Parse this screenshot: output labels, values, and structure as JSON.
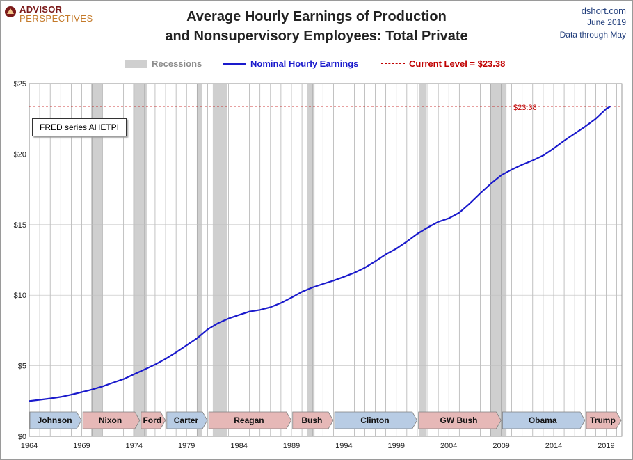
{
  "header": {
    "logo_top": "ADVISOR",
    "logo_bottom": "PERSPECTIVES",
    "title_line1": "Average Hourly Earnings of Production",
    "title_line2": "and Nonsupervisory Employees: Total Private",
    "source": "dshort.com",
    "date": "June 2019",
    "data_through": "Data through May"
  },
  "legend": {
    "recessions": "Recessions",
    "nominal": "Nominal Hourly Earnings",
    "current": "Current Level = $23.38"
  },
  "annotation": {
    "fred": "FRED series AHETPI",
    "current_value_label": "$23.38"
  },
  "colors": {
    "line": "#1a1acc",
    "recession": "#cfcfcf",
    "current": "#c00000",
    "dem": "#b8cce4",
    "rep": "#e6b8b7"
  },
  "chart_data": {
    "type": "line",
    "title": "Average Hourly Earnings of Production and Nonsupervisory Employees: Total Private",
    "xlabel": "",
    "ylabel": "",
    "xlim": [
      1964,
      2020.5
    ],
    "ylim": [
      0,
      25
    ],
    "x_ticks": [
      1964,
      1969,
      1974,
      1979,
      1984,
      1989,
      1994,
      1999,
      2004,
      2009,
      2014,
      2019
    ],
    "y_ticks": [
      0,
      5,
      10,
      15,
      20,
      25
    ],
    "y_tick_labels": [
      "$0",
      "$5",
      "$10",
      "$15",
      "$20",
      "$25"
    ],
    "grid": true,
    "current_level": 23.38,
    "series": [
      {
        "name": "Nominal Hourly Earnings",
        "x": [
          1964.0,
          1965.0,
          1966.0,
          1967.0,
          1968.0,
          1969.0,
          1970.0,
          1971.0,
          1972.0,
          1973.0,
          1974.0,
          1975.0,
          1976.0,
          1977.0,
          1978.0,
          1979.0,
          1980.0,
          1981.0,
          1982.0,
          1983.0,
          1984.0,
          1985.0,
          1986.0,
          1987.0,
          1988.0,
          1989.0,
          1990.0,
          1991.0,
          1992.0,
          1993.0,
          1994.0,
          1995.0,
          1996.0,
          1997.0,
          1998.0,
          1999.0,
          2000.0,
          2001.0,
          2002.0,
          2003.0,
          2004.0,
          2005.0,
          2006.0,
          2007.0,
          2008.0,
          2009.0,
          2010.0,
          2011.0,
          2012.0,
          2013.0,
          2014.0,
          2015.0,
          2016.0,
          2017.0,
          2018.0,
          2019.0,
          2019.4
        ],
        "y": [
          2.5,
          2.59,
          2.68,
          2.79,
          2.95,
          3.13,
          3.32,
          3.54,
          3.8,
          4.06,
          4.4,
          4.74,
          5.09,
          5.49,
          5.95,
          6.45,
          6.95,
          7.58,
          8.02,
          8.35,
          8.6,
          8.84,
          8.96,
          9.15,
          9.45,
          9.83,
          10.24,
          10.55,
          10.8,
          11.03,
          11.3,
          11.59,
          11.95,
          12.4,
          12.9,
          13.3,
          13.8,
          14.35,
          14.8,
          15.2,
          15.45,
          15.85,
          16.5,
          17.22,
          17.9,
          18.5,
          18.9,
          19.25,
          19.55,
          19.9,
          20.4,
          20.95,
          21.45,
          21.95,
          22.5,
          23.2,
          23.38
        ]
      }
    ],
    "recessions": [
      [
        1969.9,
        1970.9
      ],
      [
        1973.9,
        1975.2
      ],
      [
        1980.0,
        1980.5
      ],
      [
        1981.5,
        1982.9
      ],
      [
        1990.5,
        1991.2
      ],
      [
        2001.2,
        2001.9
      ],
      [
        2007.9,
        2009.5
      ]
    ],
    "presidents": [
      {
        "name": "Johnson",
        "start": 1964.0,
        "end": 1969.05,
        "party": "D"
      },
      {
        "name": "Nixon",
        "start": 1969.05,
        "end": 1974.6,
        "party": "R"
      },
      {
        "name": "Ford",
        "start": 1974.6,
        "end": 1977.05,
        "party": "R"
      },
      {
        "name": "Carter",
        "start": 1977.05,
        "end": 1981.05,
        "party": "D"
      },
      {
        "name": "Reagan",
        "start": 1981.05,
        "end": 1989.05,
        "party": "R"
      },
      {
        "name": "Bush",
        "start": 1989.05,
        "end": 1993.05,
        "party": "R"
      },
      {
        "name": "Clinton",
        "start": 1993.05,
        "end": 2001.05,
        "party": "D"
      },
      {
        "name": "GW Bush",
        "start": 2001.05,
        "end": 2009.05,
        "party": "R"
      },
      {
        "name": "Obama",
        "start": 2009.05,
        "end": 2017.05,
        "party": "D"
      },
      {
        "name": "Trump",
        "start": 2017.05,
        "end": 2020.5,
        "party": "R"
      }
    ]
  }
}
